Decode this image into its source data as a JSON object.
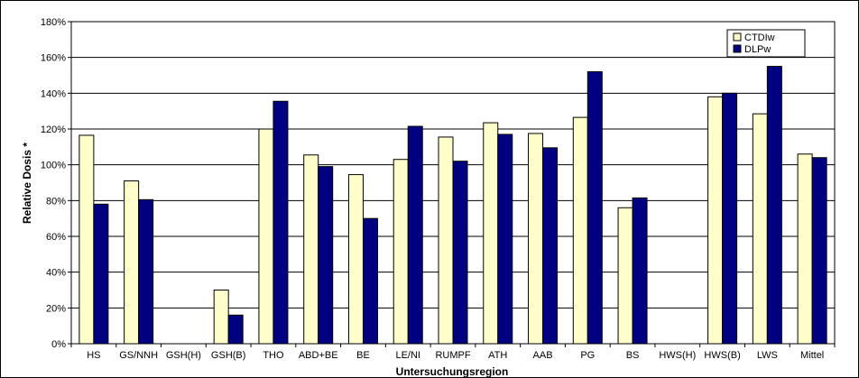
{
  "chart_data": {
    "type": "bar",
    "title": "",
    "xlabel": "Untersuchungsregion",
    "ylabel": "Relative Dosis *",
    "ylim": [
      0,
      180
    ],
    "y_ticks": [
      0,
      20,
      40,
      60,
      80,
      100,
      120,
      140,
      160,
      180
    ],
    "y_tick_labels": [
      "0%",
      "20%",
      "40%",
      "60%",
      "80%",
      "100%",
      "120%",
      "140%",
      "160%",
      "180%"
    ],
    "grid": true,
    "legend_position": "top-right",
    "categories": [
      "HS",
      "GS/NNH",
      "GSH(H)",
      "GSH(B)",
      "THO",
      "ABD+BE",
      "BE",
      "LE/NI",
      "RUMPF",
      "ATH",
      "AAB",
      "PG",
      "BS",
      "HWS(H)",
      "HWS(B)",
      "LWS",
      "Mittel"
    ],
    "series": [
      {
        "name": "CTDIw",
        "color": "#FFFFCC",
        "values": [
          116.5,
          91,
          null,
          30,
          120,
          105.5,
          94.5,
          103,
          115.5,
          123.5,
          117.5,
          126.5,
          76,
          null,
          138,
          128.5,
          106
        ]
      },
      {
        "name": "DLPw",
        "color": "#000080",
        "values": [
          78,
          80.5,
          null,
          16,
          135.5,
          99,
          70,
          121.5,
          102,
          117,
          109.5,
          152,
          81.5,
          null,
          140,
          155,
          104
        ]
      }
    ]
  }
}
